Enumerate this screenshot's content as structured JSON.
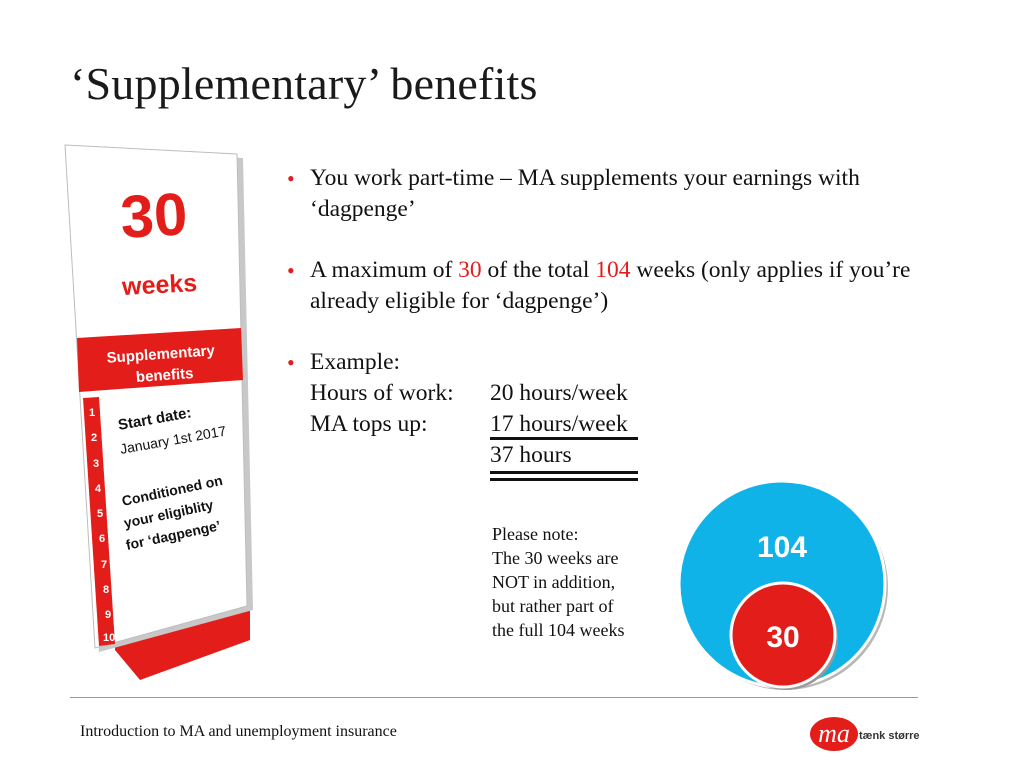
{
  "slide": {
    "title": "‘Supplementary’ benefits"
  },
  "bookmark": {
    "number": "30",
    "unit": "weeks",
    "banner_line1": "Supplementary",
    "banner_line2": "benefits",
    "start_label": "Start date:",
    "start_value": "January 1st 2017",
    "cond_line1": "Conditioned on",
    "cond_line2": "your eligiblity",
    "cond_line3": "for ‘dagpenge’",
    "week_numbers": [
      "1",
      "2",
      "3",
      "4",
      "5",
      "6",
      "7",
      "8",
      "9",
      "10"
    ],
    "colors": {
      "accent": "#e31d1a",
      "panel": "#ffffff",
      "edge": "#b9b9b9"
    }
  },
  "bullets": {
    "b1": "You work part-time – MA supplements your earnings with ‘dagpenge’",
    "b2_pre": "A maximum of ",
    "b2_num1": "30",
    "b2_mid": " of the total ",
    "b2_num2": "104",
    "b2_post": " weeks (only applies if you’re already eligible for ‘dagpenge’)",
    "b3_label": "Example:",
    "example": [
      {
        "label": "Hours of work:",
        "value": "20 hours/week"
      },
      {
        "label": "MA tops up:",
        "value": "17  hours/week"
      },
      {
        "label": "",
        "value": "37 hours"
      }
    ]
  },
  "note": {
    "lines": [
      "Please note:",
      "The 30 weeks are",
      "NOT in addition,",
      "but rather part of",
      "the full 104 weeks"
    ]
  },
  "circles": {
    "outer_label": "104",
    "inner_label": "30",
    "outer_color": "#10b3e8",
    "inner_color": "#e31d1a"
  },
  "footer": {
    "text": "Introduction to MA and unemployment insurance",
    "logo_text": "ma",
    "logo_tagline": "tænk større"
  }
}
